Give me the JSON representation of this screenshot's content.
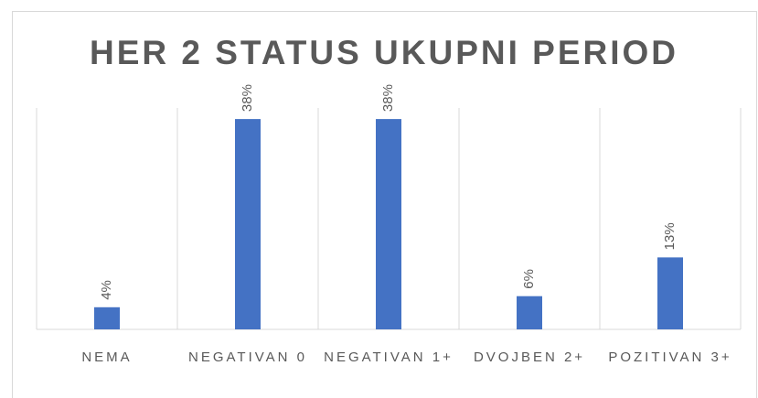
{
  "chart_data": {
    "type": "bar",
    "title": "HER 2 STATUS UKUPNI PERIOD",
    "categories": [
      "NEMA",
      "NEGATIVAN 0",
      "NEGATIVAN 1+",
      "DVOJBEN 2+",
      "POZITIVAN 3+"
    ],
    "values": [
      4,
      38,
      38,
      6,
      13
    ],
    "value_labels": [
      "4%",
      "38%",
      "38%",
      "6%",
      "13%"
    ],
    "color": "#4472c4",
    "ylim": [
      0,
      40
    ]
  }
}
